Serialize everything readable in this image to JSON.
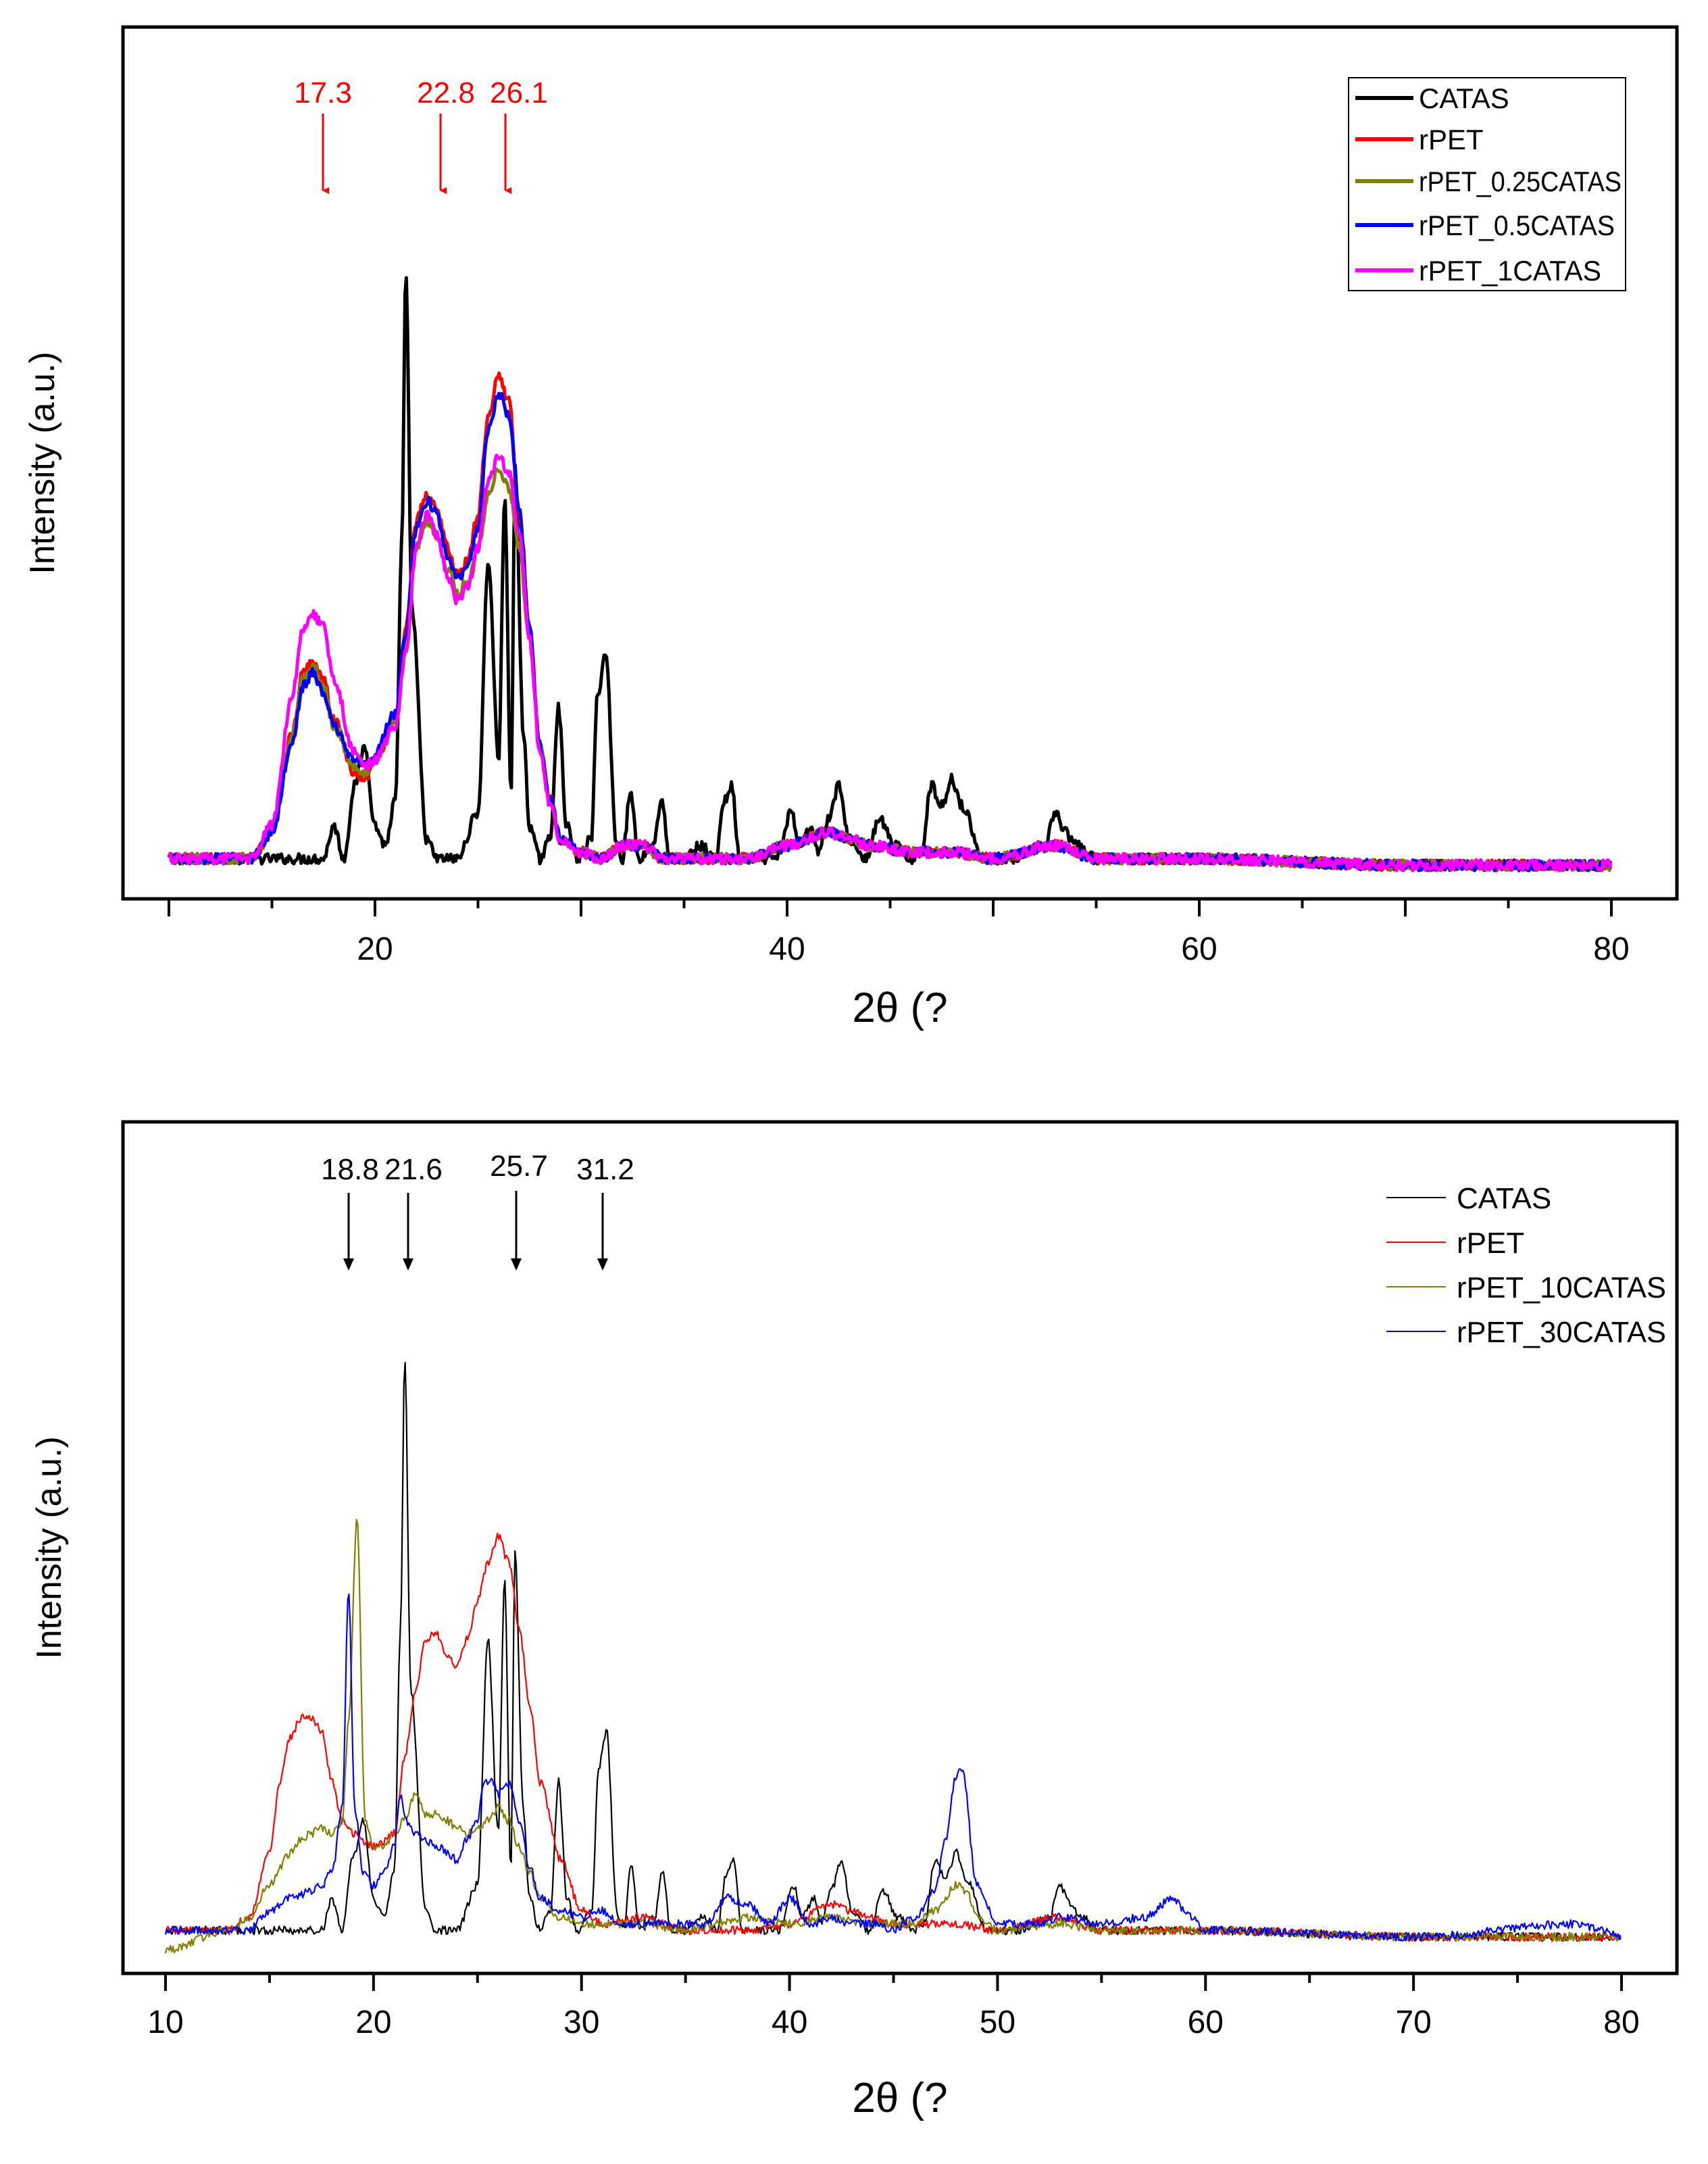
{
  "chart_data": [
    {
      "type": "line",
      "ylabel": "Intensity (a.u.)",
      "xlabel": "2θ (?",
      "xlim": [
        10,
        80
      ],
      "ylim": [
        0,
        100
      ],
      "xticks": [
        20,
        40,
        60,
        80
      ],
      "legend_position": "top-right",
      "annotations": [
        {
          "label": "17.3",
          "x": 17.3
        },
        {
          "label": "22.8",
          "x": 22.8
        },
        {
          "label": "26.1",
          "x": 26.1
        }
      ],
      "series": [
        {
          "name": "CATAS",
          "color": "#000000",
          "x": [
            10,
            17.5,
            18,
            18.5,
            19,
            19.5,
            20,
            20.5,
            21,
            21.3,
            21.5,
            21.8,
            22.5,
            23,
            24,
            25,
            25.5,
            26,
            26.3,
            26.6,
            26.8,
            27.2,
            27.5,
            28,
            28.5,
            28.9,
            29.3,
            29.8,
            30.5,
            30.8,
            31.2,
            31.7,
            32,
            32.4,
            32.8,
            33.5,
            33.9,
            34.3,
            35,
            35.8,
            36.5,
            37,
            37.3,
            37.7,
            38.3,
            39.5,
            40.2,
            40.6,
            41.2,
            41.5,
            42,
            42.5,
            43,
            43.8,
            44.5,
            45.2,
            46,
            46.5,
            47,
            47.5,
            48,
            48.5,
            49.5,
            51,
            52.5,
            53,
            53.5,
            54,
            55,
            60,
            70,
            80
          ],
          "y": [
            3,
            3,
            8,
            3,
            14,
            20,
            8,
            5,
            12,
            50,
            92,
            40,
            6,
            3,
            3,
            10,
            48,
            18,
            58,
            12,
            62,
            22,
            8,
            3,
            6,
            26,
            8,
            3,
            6,
            28,
            34,
            6,
            3,
            13,
            3,
            5,
            12,
            3,
            3,
            5,
            3,
            12,
            14,
            3,
            3,
            3,
            10,
            5,
            8,
            4,
            9,
            14,
            6,
            3,
            9,
            5,
            3,
            4,
            14,
            11,
            15,
            11,
            3,
            3,
            5,
            10,
            7,
            5,
            3,
            3,
            2,
            2
          ]
        },
        {
          "name": "rPET",
          "color": "#ff0000",
          "x": [
            10,
            14,
            15,
            16,
            16.5,
            17,
            17.5,
            18,
            19,
            19.5,
            20,
            21,
            21.5,
            22,
            22.5,
            23,
            23.5,
            24,
            24.5,
            25,
            25.5,
            26,
            26.5,
            27,
            27.5,
            28,
            28.5,
            29,
            30,
            31,
            32,
            33,
            34,
            36,
            38,
            40,
            42,
            43,
            44,
            46,
            48,
            50,
            53,
            55,
            60,
            70,
            80
          ],
          "y": [
            3,
            3,
            7,
            22,
            31,
            33,
            30,
            24,
            16,
            15,
            18,
            24,
            38,
            54,
            58,
            56,
            50,
            46,
            48,
            55,
            70,
            76,
            72,
            55,
            38,
            20,
            12,
            6,
            4,
            3,
            5,
            5,
            3,
            3,
            3,
            5,
            7,
            6,
            5,
            4,
            4,
            3,
            5,
            3,
            3,
            2,
            2
          ]
        },
        {
          "name": "rPET_0.25CATAS",
          "color": "#808000",
          "x": [
            10,
            14,
            15,
            16,
            16.5,
            17,
            17.5,
            18,
            19,
            19.5,
            20,
            21,
            21.5,
            22,
            22.5,
            23,
            23.5,
            24,
            24.5,
            25,
            25.5,
            26,
            26.5,
            27,
            27.5,
            28,
            28.5,
            29,
            30,
            31,
            32,
            33,
            34,
            36,
            38,
            40,
            42,
            43,
            44,
            46,
            48,
            50,
            53,
            55,
            60,
            70,
            80
          ],
          "y": [
            3,
            3,
            7,
            22,
            30,
            32,
            29,
            23,
            17,
            16,
            18,
            24,
            36,
            50,
            54,
            52,
            47,
            43,
            45,
            50,
            58,
            62,
            59,
            50,
            36,
            20,
            12,
            6,
            4,
            3,
            5,
            5,
            3,
            3,
            3,
            5,
            7,
            6,
            5,
            4,
            4,
            3,
            5,
            3,
            3,
            2,
            2
          ]
        },
        {
          "name": "rPET_0.5CATAS",
          "color": "#0000ff",
          "x": [
            10,
            14,
            15,
            16,
            16.5,
            17,
            17.5,
            18,
            19,
            19.5,
            20,
            21,
            21.5,
            22,
            22.5,
            23,
            23.5,
            24,
            24.5,
            25,
            25.5,
            26,
            26.5,
            27,
            27.5,
            28,
            28.5,
            29,
            30,
            31,
            32,
            33,
            34,
            36,
            38,
            40,
            42,
            43,
            44,
            46,
            48,
            50,
            53,
            55,
            60,
            70,
            80
          ],
          "y": [
            3,
            3,
            7,
            21,
            29,
            31,
            28,
            23,
            18,
            17,
            19,
            25,
            37,
            53,
            57,
            55,
            49,
            45,
            47,
            53,
            68,
            73,
            70,
            56,
            38,
            20,
            12,
            6,
            4,
            3,
            5,
            5,
            3,
            3,
            3,
            5,
            7,
            6,
            5,
            4,
            4,
            3,
            5,
            3,
            3,
            2,
            2
          ]
        },
        {
          "name": "rPET_1CATAS",
          "color": "#ff00ff",
          "x": [
            10,
            14,
            15,
            16,
            16.5,
            17,
            17.5,
            18,
            19,
            19.5,
            20,
            21,
            21.5,
            22,
            22.5,
            23,
            23.5,
            24,
            24.5,
            25,
            25.5,
            26,
            26.5,
            27,
            27.5,
            28,
            28.5,
            29,
            30,
            31,
            32,
            33,
            34,
            36,
            38,
            40,
            42,
            43,
            44,
            46,
            48,
            50,
            53,
            55,
            60,
            70,
            80
          ],
          "y": [
            3,
            3,
            8,
            28,
            38,
            40,
            38,
            30,
            19,
            17,
            18,
            23,
            34,
            50,
            55,
            52,
            46,
            42,
            44,
            50,
            60,
            64,
            61,
            52,
            36,
            19,
            11,
            6,
            4,
            3,
            5,
            5,
            3,
            3,
            3,
            5,
            7,
            6,
            5,
            4,
            4,
            3,
            5,
            3,
            3,
            2,
            2
          ]
        }
      ]
    },
    {
      "type": "line",
      "ylabel": "Intensity (a.u.)",
      "xlabel": "2θ (?",
      "xlim": [
        10,
        80
      ],
      "ylim": [
        0,
        100
      ],
      "xticks": [
        10,
        20,
        30,
        40,
        50,
        60,
        70,
        80
      ],
      "legend_position": "top-right",
      "annotations": [
        {
          "label": "18.8",
          "x": 18.8
        },
        {
          "label": "21.6",
          "x": 21.6
        },
        {
          "label": "25.7",
          "x": 25.7
        },
        {
          "label": "31.2",
          "x": 31.2
        }
      ],
      "series": [
        {
          "name": "CATAS",
          "color": "#000000",
          "x": [
            10,
            17.5,
            18,
            18.5,
            19,
            19.5,
            20,
            20.5,
            21,
            21.3,
            21.5,
            21.8,
            22.5,
            23,
            24,
            25,
            25.5,
            26,
            26.3,
            26.6,
            26.8,
            27.2,
            27.5,
            28,
            28.5,
            28.9,
            29.3,
            29.8,
            30.5,
            30.8,
            31.2,
            31.7,
            32,
            32.4,
            32.8,
            33.5,
            33.9,
            34.3,
            35,
            35.8,
            36.5,
            37,
            37.3,
            37.7,
            38.3,
            39.5,
            40.2,
            40.6,
            41.2,
            41.5,
            42,
            42.5,
            43,
            43.8,
            44.5,
            45.2,
            46,
            46.5,
            47,
            47.5,
            48,
            48.5,
            49.5,
            51,
            52.5,
            53,
            53.5,
            54,
            55,
            60,
            70,
            80
          ],
          "y": [
            3,
            3,
            8,
            3,
            14,
            20,
            8,
            5,
            12,
            50,
            92,
            40,
            6,
            3,
            3,
            10,
            48,
            18,
            58,
            12,
            62,
            22,
            8,
            3,
            6,
            26,
            8,
            3,
            6,
            28,
            34,
            6,
            3,
            13,
            3,
            5,
            12,
            3,
            3,
            5,
            3,
            12,
            14,
            3,
            3,
            3,
            10,
            5,
            8,
            4,
            9,
            14,
            6,
            3,
            9,
            5,
            3,
            4,
            14,
            11,
            15,
            11,
            3,
            3,
            5,
            10,
            7,
            5,
            3,
            3,
            2,
            2
          ]
        },
        {
          "name": "rPET",
          "color": "#ff0000",
          "x": [
            10,
            13,
            14,
            15,
            15.5,
            16,
            16.5,
            17,
            17.5,
            18,
            18.5,
            19,
            20,
            21,
            21.5,
            22,
            22.5,
            23,
            23.5,
            24,
            24.5,
            25,
            25.5,
            26,
            26.5,
            27,
            27.5,
            28,
            29,
            30,
            31,
            33,
            35,
            38,
            40,
            42,
            43,
            45,
            48,
            50,
            53,
            55,
            60,
            70,
            80
          ],
          "y": [
            3,
            3,
            5,
            15,
            26,
            33,
            36,
            36,
            34,
            26,
            20,
            18,
            16,
            18,
            30,
            40,
            48,
            49,
            46,
            44,
            48,
            54,
            60,
            64,
            60,
            50,
            38,
            26,
            14,
            6,
            4,
            5,
            3,
            3,
            4,
            7,
            6,
            4,
            4,
            3,
            5,
            3,
            3,
            2,
            2
          ]
        },
        {
          "name": "rPET_10CATAS",
          "color": "#808000",
          "x": [
            10,
            13,
            14,
            15,
            16,
            16.5,
            17,
            17.5,
            18,
            18.5,
            18.8,
            19.2,
            19.6,
            20,
            20.5,
            21,
            21.5,
            22,
            22.5,
            23,
            23.5,
            24,
            24.5,
            25,
            25.5,
            26,
            26.5,
            27,
            27.5,
            28,
            29,
            30,
            31,
            33,
            35,
            38,
            40,
            42,
            44,
            46,
            47,
            48,
            48.5,
            49,
            50,
            53,
            55,
            60,
            70,
            80
          ],
          "y": [
            0,
            3,
            5,
            10,
            15,
            17,
            18,
            19,
            18,
            20,
            35,
            67,
            20,
            16,
            16,
            18,
            20,
            24,
            21,
            21,
            20,
            19,
            18,
            19,
            20,
            22,
            20,
            16,
            12,
            8,
            5,
            4,
            4,
            4,
            3,
            5,
            4,
            5,
            4,
            4,
            6,
            10,
            9,
            5,
            3,
            4,
            3,
            3,
            2,
            2
          ]
        },
        {
          "name": "rPET_30CATAS",
          "color": "#0000ff",
          "x": [
            10,
            14,
            15,
            16,
            17,
            17.5,
            18,
            18.5,
            18.8,
            19.1,
            19.5,
            20,
            20.5,
            21,
            21.3,
            21.6,
            22,
            22.5,
            23,
            24,
            24.5,
            25,
            25.3,
            25.7,
            26,
            26.5,
            27,
            27.5,
            28,
            29,
            30,
            31,
            32,
            34,
            36,
            37,
            38,
            39,
            40,
            41,
            42,
            43,
            44,
            45,
            46,
            47,
            47.5,
            48,
            48.3,
            49,
            50,
            52,
            53,
            55,
            57,
            58.5,
            59,
            60,
            70,
            78,
            79,
            80
          ],
          "y": [
            3,
            3,
            6,
            8,
            9,
            10,
            12,
            22,
            56,
            22,
            12,
            10,
            12,
            16,
            24,
            20,
            18,
            17,
            16,
            14,
            17,
            20,
            26,
            26,
            24,
            26,
            20,
            13,
            8,
            6,
            5,
            6,
            4,
            4,
            4,
            8,
            7,
            4,
            8,
            4,
            5,
            4,
            4,
            3,
            5,
            9,
            17,
            27,
            28,
            10,
            4,
            4,
            5,
            4,
            5,
            8,
            6,
            3,
            2,
            4,
            3,
            2
          ]
        }
      ]
    }
  ]
}
